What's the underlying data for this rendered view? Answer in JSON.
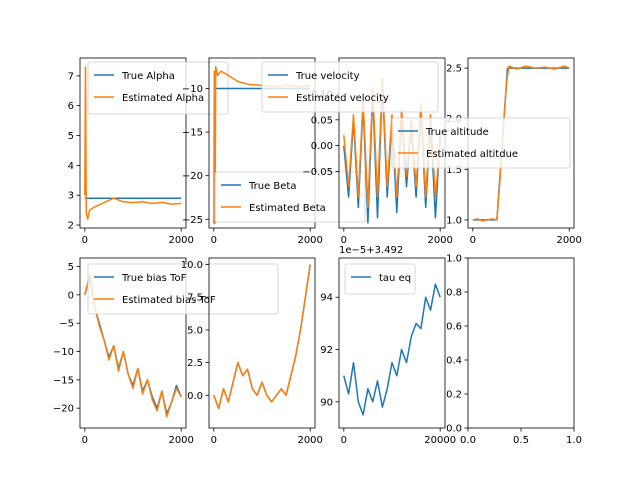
{
  "colors": {
    "blue": "#1f77b4",
    "orange": "#ff7f0e"
  },
  "chart_data": [
    {
      "id": "p1",
      "type": "line",
      "xlim": [
        -100,
        2100
      ],
      "ylim": [
        1.9,
        7.6
      ],
      "xticks": [
        0,
        2000
      ],
      "xtick_labels": [
        "0",
        "2000"
      ],
      "yticks": [
        2,
        3,
        4,
        5,
        6,
        7
      ],
      "ytick_labels": [
        "2",
        "3",
        "4",
        "5",
        "6",
        "7"
      ],
      "legend": {
        "placement": "upper-right"
      },
      "series": [
        {
          "name": "True Alpha",
          "color": "#1f77b4",
          "points": [
            [
              0,
              2.9
            ],
            [
              2000,
              2.9
            ]
          ]
        },
        {
          "name": "Estimated Alpha",
          "color": "#ff7f0e",
          "points": [
            [
              0,
              3.0
            ],
            [
              15,
              7.3
            ],
            [
              30,
              2.4
            ],
            [
              60,
              2.2
            ],
            [
              100,
              2.5
            ],
            [
              200,
              2.6
            ],
            [
              400,
              2.75
            ],
            [
              600,
              2.9
            ],
            [
              800,
              2.78
            ],
            [
              1000,
              2.75
            ],
            [
              1200,
              2.78
            ],
            [
              1400,
              2.72
            ],
            [
              1600,
              2.76
            ],
            [
              1800,
              2.7
            ],
            [
              2000,
              2.72
            ]
          ]
        }
      ]
    },
    {
      "id": "p2",
      "type": "line",
      "xlim": [
        -100,
        2100
      ],
      "ylim": [
        -26,
        -6.5
      ],
      "xticks": [
        0,
        2000
      ],
      "xtick_labels": [
        "0",
        "2000"
      ],
      "yticks": [
        -10,
        -15,
        -20,
        -25
      ],
      "ytick_labels": [
        "−10",
        "−15",
        "−20",
        "−25"
      ],
      "legend": {
        "placement": "lower-right"
      },
      "series": [
        {
          "name": "True Beta",
          "color": "#1f77b4",
          "points": [
            [
              0,
              -10
            ],
            [
              2000,
              -10
            ]
          ]
        },
        {
          "name": "Estimated Beta",
          "color": "#ff7f0e",
          "points": [
            [
              0,
              -25.5
            ],
            [
              10,
              -8.0
            ],
            [
              25,
              -25.5
            ],
            [
              40,
              -7.5
            ],
            [
              80,
              -8.5
            ],
            [
              150,
              -8.0
            ],
            [
              300,
              -8.5
            ],
            [
              500,
              -9.2
            ],
            [
              700,
              -9.5
            ],
            [
              900,
              -9.6
            ],
            [
              1100,
              -9.7
            ],
            [
              1300,
              -9.8
            ],
            [
              1500,
              -9.6
            ],
            [
              1800,
              -9.8
            ],
            [
              2000,
              -9.7
            ]
          ]
        }
      ]
    },
    {
      "id": "p3",
      "type": "line",
      "xlim": [
        -100,
        2100
      ],
      "ylim": [
        -0.16,
        0.17
      ],
      "xticks": [
        0,
        2000
      ],
      "xtick_labels": [
        "0",
        "2000"
      ],
      "yticks": [
        0.1,
        0.05,
        0.0,
        -0.05
      ],
      "ytick_labels": [
        "0.10",
        "0.05",
        "0.00",
        "−0.05"
      ],
      "legend": {
        "placement": "upper-right"
      },
      "series": [
        {
          "name": "True velocity",
          "color": "#1f77b4",
          "points": [
            [
              0,
              0.0
            ],
            [
              100,
              -0.1
            ],
            [
              200,
              0.05
            ],
            [
              300,
              -0.12
            ],
            [
              400,
              0.08
            ],
            [
              500,
              -0.15
            ],
            [
              600,
              0.1
            ],
            [
              700,
              -0.14
            ],
            [
              800,
              0.12
            ],
            [
              900,
              -0.1
            ],
            [
              1000,
              0.05
            ],
            [
              1100,
              -0.13
            ],
            [
              1200,
              0.06
            ],
            [
              1300,
              -0.08
            ],
            [
              1400,
              0.04
            ],
            [
              1500,
              -0.1
            ],
            [
              1600,
              0.07
            ],
            [
              1700,
              -0.12
            ],
            [
              1800,
              0.05
            ],
            [
              1900,
              -0.14
            ],
            [
              2000,
              0.02
            ]
          ]
        },
        {
          "name": "Estimated velocity",
          "color": "#ff7f0e",
          "points": [
            [
              0,
              0.02
            ],
            [
              100,
              -0.08
            ],
            [
              200,
              0.06
            ],
            [
              300,
              -0.1
            ],
            [
              400,
              0.09
            ],
            [
              500,
              -0.12
            ],
            [
              600,
              0.11
            ],
            [
              700,
              -0.1
            ],
            [
              800,
              0.13
            ],
            [
              900,
              -0.08
            ],
            [
              1000,
              0.06
            ],
            [
              1100,
              -0.1
            ],
            [
              1200,
              0.07
            ],
            [
              1300,
              -0.06
            ],
            [
              1400,
              0.05
            ],
            [
              1500,
              -0.08
            ],
            [
              1600,
              0.08
            ],
            [
              1700,
              -0.1
            ],
            [
              1800,
              0.06
            ],
            [
              1900,
              -0.1
            ],
            [
              2000,
              0.01
            ]
          ]
        }
      ]
    },
    {
      "id": "p4",
      "type": "line",
      "xlim": [
        -100,
        2100
      ],
      "ylim": [
        0.92,
        2.6
      ],
      "xticks": [
        0,
        2000
      ],
      "xtick_labels": [
        "0",
        "2000"
      ],
      "yticks": [
        1.0,
        1.5,
        2.0,
        2.5
      ],
      "ytick_labels": [
        "1.0",
        "1.5",
        "2.0",
        "2.5"
      ],
      "legend": {
        "placement": "center-right"
      },
      "series": [
        {
          "name": "True altitude",
          "color": "#1f77b4",
          "points": [
            [
              0,
              1.0
            ],
            [
              500,
              1.0
            ],
            [
              720,
              2.5
            ],
            [
              2000,
              2.5
            ]
          ]
        },
        {
          "name": "Estimated altitdue",
          "color": "#ff7f0e",
          "points": [
            [
              0,
              1.0
            ],
            [
              100,
              1.01
            ],
            [
              200,
              0.99
            ],
            [
              300,
              1.0
            ],
            [
              400,
              1.01
            ],
            [
              500,
              1.0
            ],
            [
              550,
              1.3
            ],
            [
              600,
              1.65
            ],
            [
              650,
              2.0
            ],
            [
              700,
              2.35
            ],
            [
              750,
              2.52
            ],
            [
              900,
              2.49
            ],
            [
              1100,
              2.52
            ],
            [
              1300,
              2.5
            ],
            [
              1500,
              2.51
            ],
            [
              1700,
              2.49
            ],
            [
              1900,
              2.52
            ],
            [
              2000,
              2.5
            ]
          ]
        }
      ]
    },
    {
      "id": "p5",
      "type": "line",
      "xlim": [
        -100,
        2100
      ],
      "ylim": [
        -23.5,
        6.5
      ],
      "xticks": [
        0,
        2000
      ],
      "xtick_labels": [
        "0",
        "2000"
      ],
      "yticks": [
        5,
        0,
        -5,
        -10,
        -15,
        -20
      ],
      "ytick_labels": [
        "5",
        "0",
        "−5",
        "−10",
        "−15",
        "−20"
      ],
      "legend": {
        "placement": "upper-right"
      },
      "series": [
        {
          "name": "True bias ToF",
          "color": "#1f77b4",
          "points": [
            [
              0,
              0
            ],
            [
              100,
              3
            ],
            [
              200,
              -2
            ],
            [
              300,
              -5
            ],
            [
              400,
              -8
            ],
            [
              500,
              -11
            ],
            [
              600,
              -9
            ],
            [
              700,
              -13
            ],
            [
              800,
              -10
            ],
            [
              900,
              -14
            ],
            [
              1000,
              -16
            ],
            [
              1100,
              -13
            ],
            [
              1200,
              -17
            ],
            [
              1300,
              -15
            ],
            [
              1400,
              -18
            ],
            [
              1500,
              -20
            ],
            [
              1600,
              -17
            ],
            [
              1700,
              -21
            ],
            [
              1800,
              -19
            ],
            [
              1900,
              -16
            ],
            [
              2000,
              -18
            ]
          ]
        },
        {
          "name": "Estimated bias ToF",
          "color": "#ff7f0e",
          "points": [
            [
              0,
              0
            ],
            [
              100,
              3.5
            ],
            [
              200,
              -2
            ],
            [
              300,
              -5.5
            ],
            [
              400,
              -8
            ],
            [
              500,
              -11.5
            ],
            [
              600,
              -9
            ],
            [
              700,
              -13.5
            ],
            [
              800,
              -10
            ],
            [
              900,
              -14
            ],
            [
              1000,
              -16.5
            ],
            [
              1100,
              -13
            ],
            [
              1200,
              -17.5
            ],
            [
              1300,
              -15
            ],
            [
              1400,
              -18.5
            ],
            [
              1500,
              -20.5
            ],
            [
              1600,
              -17
            ],
            [
              1700,
              -21.5
            ],
            [
              1800,
              -19
            ],
            [
              1900,
              -16.5
            ],
            [
              2000,
              -18
            ]
          ]
        }
      ]
    },
    {
      "id": "p6",
      "type": "line",
      "xlim": [
        -100,
        2100
      ],
      "ylim": [
        -2.5,
        10.5
      ],
      "xticks": [
        0,
        2000
      ],
      "xtick_labels": [
        "0",
        "2000"
      ],
      "yticks": [
        10.0,
        7.5,
        5.0,
        2.5,
        0.0
      ],
      "ytick_labels": [
        "10.0",
        "7.5",
        "5.0",
        "2.5",
        "0.0"
      ],
      "legend": null,
      "series": [
        {
          "name": "",
          "color": "#1f77b4",
          "points": [
            [
              0,
              0
            ],
            [
              100,
              -1
            ],
            [
              200,
              0.5
            ],
            [
              300,
              -0.5
            ],
            [
              400,
              1.0
            ],
            [
              500,
              2.5
            ],
            [
              600,
              1.5
            ],
            [
              700,
              2.0
            ],
            [
              800,
              0.5
            ],
            [
              900,
              0.0
            ],
            [
              1000,
              1.0
            ],
            [
              1100,
              0.0
            ],
            [
              1200,
              -0.5
            ],
            [
              1300,
              0.0
            ],
            [
              1400,
              0.5
            ],
            [
              1500,
              0.0
            ],
            [
              1600,
              1.5
            ],
            [
              1700,
              3.0
            ],
            [
              1800,
              5.0
            ],
            [
              1900,
              7.5
            ],
            [
              2000,
              10.0
            ]
          ]
        },
        {
          "name": "",
          "color": "#ff7f0e",
          "points": [
            [
              0,
              0
            ],
            [
              100,
              -1
            ],
            [
              200,
              0.5
            ],
            [
              300,
              -0.5
            ],
            [
              400,
              1.0
            ],
            [
              500,
              2.5
            ],
            [
              600,
              1.5
            ],
            [
              700,
              2.0
            ],
            [
              800,
              0.5
            ],
            [
              900,
              0.0
            ],
            [
              1000,
              1.0
            ],
            [
              1100,
              0.0
            ],
            [
              1200,
              -0.5
            ],
            [
              1300,
              0.0
            ],
            [
              1400,
              0.5
            ],
            [
              1500,
              0.0
            ],
            [
              1600,
              1.5
            ],
            [
              1700,
              3.0
            ],
            [
              1800,
              5.0
            ],
            [
              1900,
              7.5
            ],
            [
              2000,
              10.0
            ]
          ]
        }
      ]
    },
    {
      "id": "p7",
      "type": "line",
      "xlim": [
        -1000,
        21000
      ],
      "ylim": [
        89.0,
        95.5
      ],
      "xticks": [
        0,
        20000
      ],
      "xtick_labels": [
        "0",
        "20000"
      ],
      "yticks": [
        94,
        92,
        90
      ],
      "ytick_labels": [
        "94",
        "92",
        "90"
      ],
      "y_offset_text": "1e−5+3.492",
      "legend": {
        "placement": "upper-left"
      },
      "series": [
        {
          "name": "tau eq",
          "color": "#1f77b4",
          "points": [
            [
              0,
              91.0
            ],
            [
              1000,
              90.3
            ],
            [
              2000,
              91.5
            ],
            [
              3000,
              90.0
            ],
            [
              4000,
              89.5
            ],
            [
              5000,
              90.5
            ],
            [
              6000,
              90.0
            ],
            [
              7000,
              90.8
            ],
            [
              8000,
              89.8
            ],
            [
              9000,
              90.5
            ],
            [
              10000,
              91.5
            ],
            [
              11000,
              91.0
            ],
            [
              12000,
              92.0
            ],
            [
              13000,
              91.5
            ],
            [
              14000,
              92.5
            ],
            [
              15000,
              93.0
            ],
            [
              16000,
              92.8
            ],
            [
              17000,
              94.0
            ],
            [
              18000,
              93.5
            ],
            [
              19000,
              94.5
            ],
            [
              20000,
              94.0
            ]
          ]
        }
      ]
    },
    {
      "id": "p8",
      "type": "line",
      "xlim": [
        0,
        1
      ],
      "ylim": [
        0,
        1
      ],
      "xticks": [
        0.0,
        0.5,
        1.0
      ],
      "xtick_labels": [
        "0.0",
        "0.5",
        "1.0"
      ],
      "yticks": [
        1.0,
        0.8,
        0.6,
        0.4,
        0.2,
        0.0
      ],
      "ytick_labels": [
        "1.0",
        "0.8",
        "0.6",
        "0.4",
        "0.2",
        "0.0"
      ],
      "legend": null,
      "series": []
    }
  ]
}
